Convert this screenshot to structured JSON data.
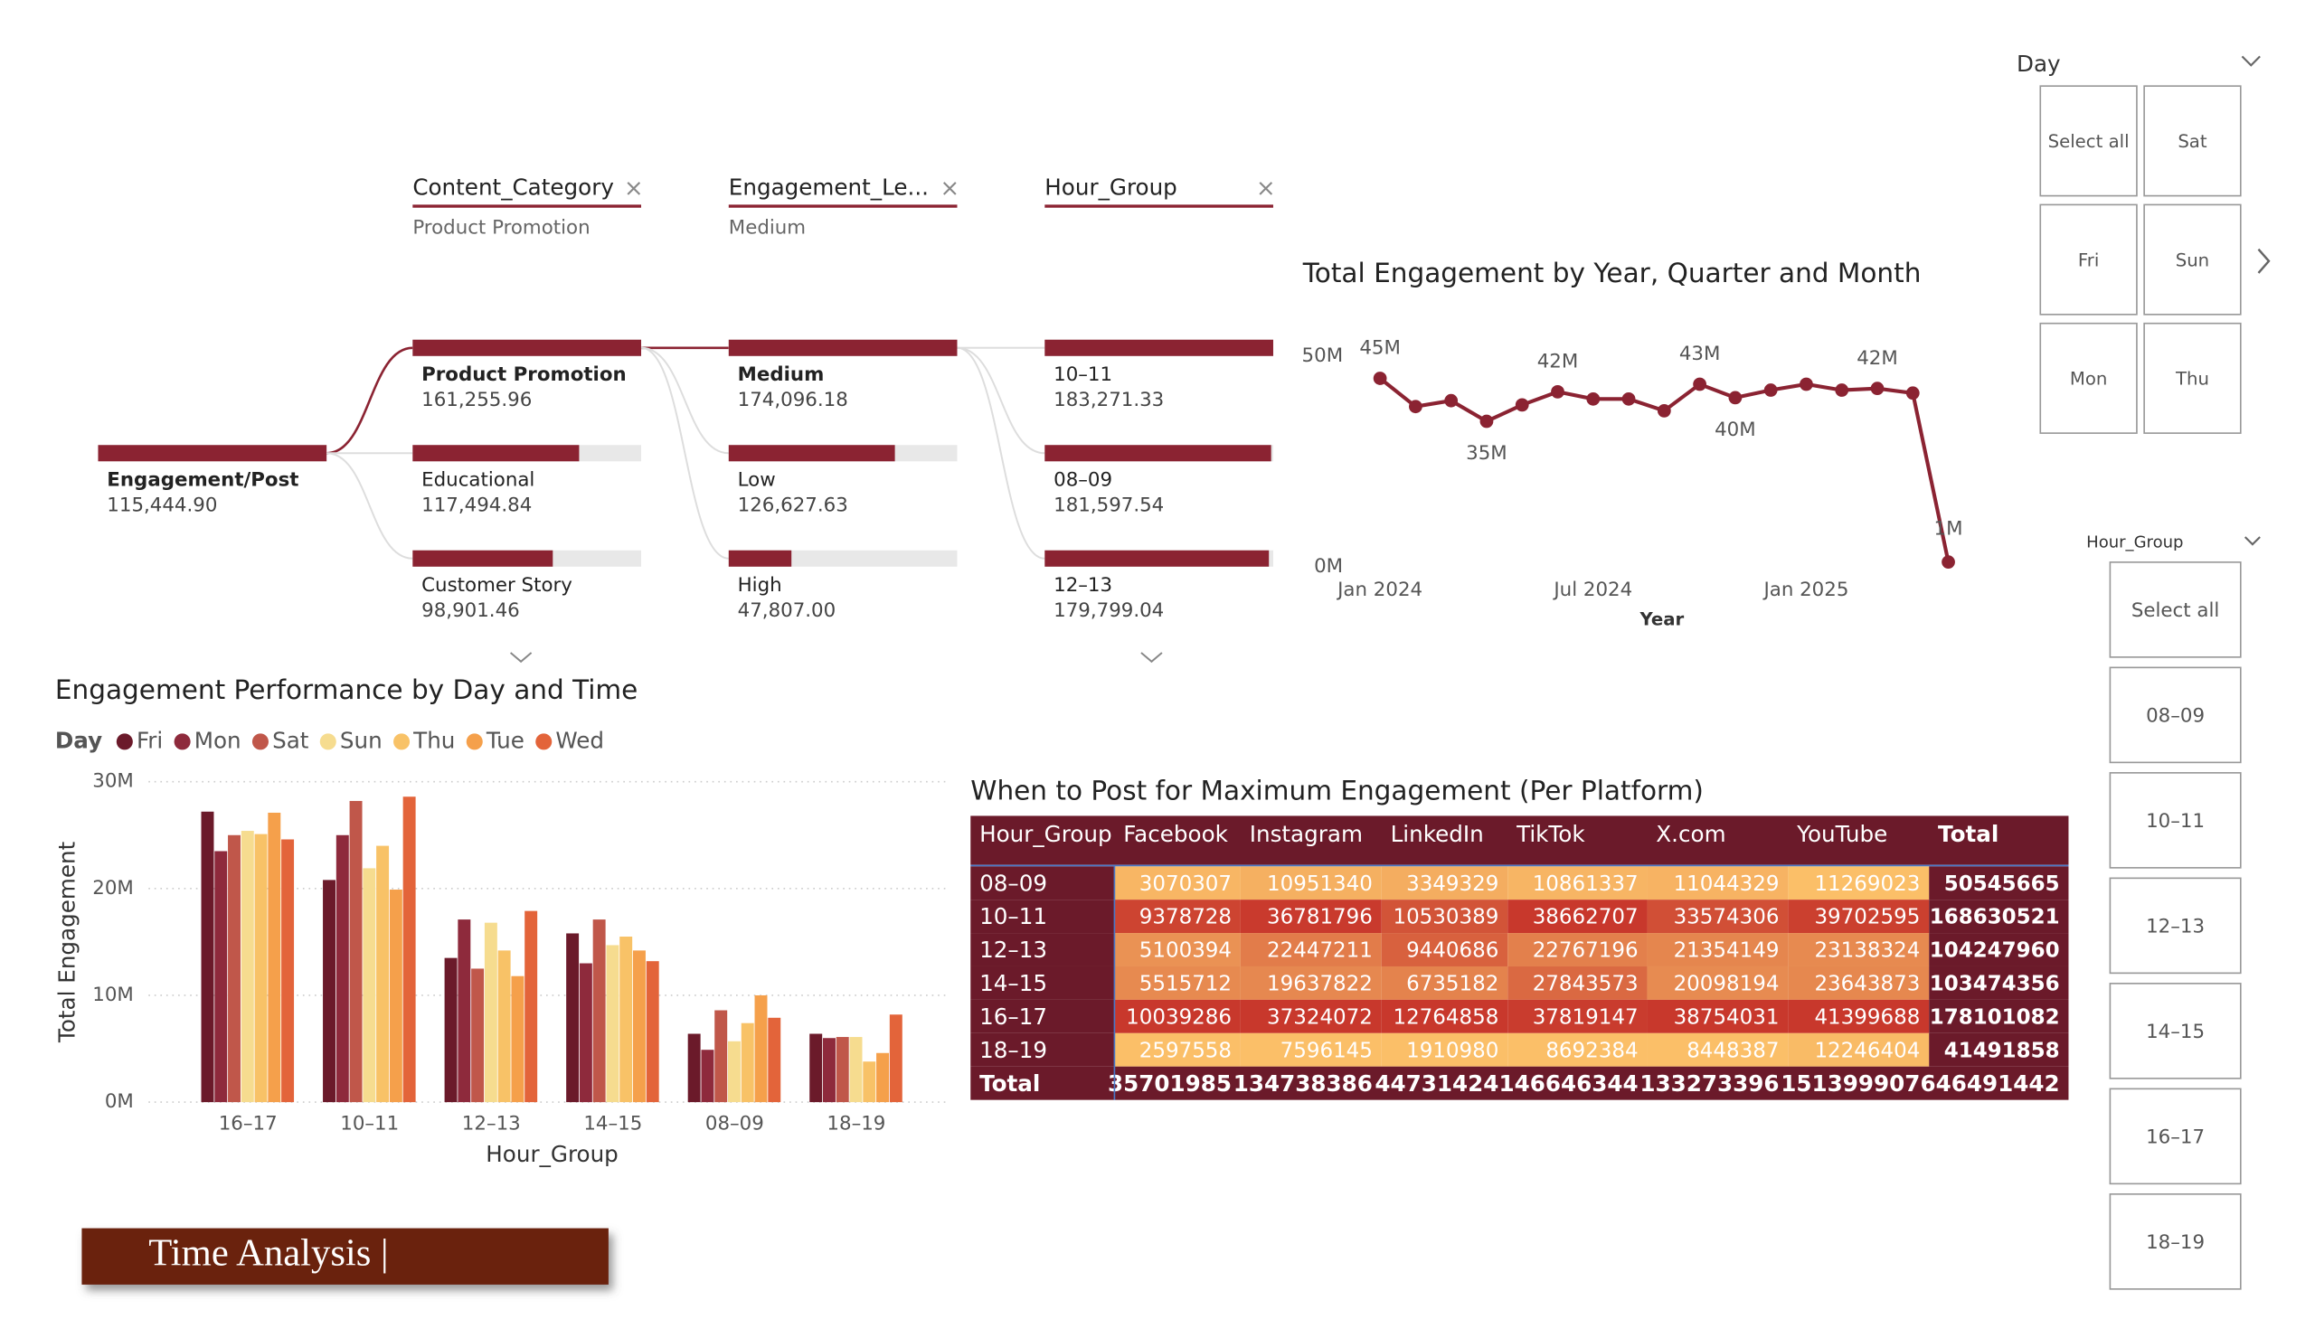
{
  "decomposition_tree": {
    "fields": [
      {
        "name": "Content_Category",
        "selection": "Product Promotion"
      },
      {
        "name": "Engagement_Le...",
        "selection": "Medium"
      },
      {
        "name": "Hour_Group"
      }
    ],
    "root": {
      "label": "Engagement/Post",
      "value": 115444.9,
      "value_label": "115,444.90"
    },
    "levels": [
      [
        {
          "label": "Product Promotion",
          "value": 161255.96,
          "value_label": "161,255.96"
        },
        {
          "label": "Educational",
          "value": 117494.84,
          "value_label": "117,494.84"
        },
        {
          "label": "Customer Story",
          "value": 98901.46,
          "value_label": "98,901.46"
        }
      ],
      [
        {
          "label": "Medium",
          "value": 174096.18,
          "value_label": "174,096.18"
        },
        {
          "label": "Low",
          "value": 126627.63,
          "value_label": "126,627.63"
        },
        {
          "label": "High",
          "value": 47807.0,
          "value_label": "47,807.00"
        }
      ],
      [
        {
          "label": "10–11",
          "value": 183271.33,
          "value_label": "183,271.33"
        },
        {
          "label": "08–09",
          "value": 181597.54,
          "value_label": "181,597.54"
        },
        {
          "label": "12–13",
          "value": 179799.04,
          "value_label": "179,799.04"
        }
      ]
    ]
  },
  "chart_data": [
    {
      "type": "line",
      "title": "Total Engagement by Year, Quarter and Month",
      "x_label": "Year",
      "categories": [
        "Jan 2024",
        null,
        null,
        null,
        null,
        null,
        "Jul 2024",
        null,
        null,
        null,
        null,
        null,
        "Jan 2025",
        null,
        null,
        null,
        null
      ],
      "values": [
        44700000,
        38000000,
        39400000,
        34500000,
        38400000,
        41500000,
        39800000,
        39800000,
        37000000,
        43300000,
        40100000,
        41900000,
        43300000,
        41900000,
        42300000,
        41200000,
        1100000
      ],
      "value_labels": [
        "45M",
        null,
        null,
        "35M",
        null,
        "42M",
        null,
        null,
        null,
        "43M",
        "40M",
        null,
        null,
        null,
        "42M",
        null,
        "1M"
      ],
      "color": "#8b2332",
      "ylim": [
        0,
        50000000
      ],
      "yticks": [
        {
          "value": 0,
          "label": "0M"
        },
        {
          "value": 50000000,
          "label": "50M"
        }
      ]
    },
    {
      "type": "bar",
      "title": "Engagement Performance by Day and Time",
      "legend_title": "Day",
      "x_label": "Hour_Group",
      "y_label": "Total Engagement",
      "categories": [
        "16–17",
        "10–11",
        "12–13",
        "14–15",
        "08–09",
        "18–19"
      ],
      "series": [
        {
          "name": "Fri",
          "color": "#6b1a2a",
          "values": [
            27200000,
            20800000,
            13500000,
            15800000,
            6400000,
            6400000
          ]
        },
        {
          "name": "Mon",
          "color": "#8e2a3c",
          "values": [
            23500000,
            25000000,
            17100000,
            13000000,
            4900000,
            6000000
          ]
        },
        {
          "name": "Sat",
          "color": "#c0574a",
          "values": [
            25000000,
            28200000,
            12500000,
            17100000,
            8600000,
            6100000
          ]
        },
        {
          "name": "Sun",
          "color": "#f6dc8f",
          "values": [
            25400000,
            21900000,
            16800000,
            14700000,
            5700000,
            6100000
          ]
        },
        {
          "name": "Thu",
          "color": "#f8c267",
          "values": [
            25100000,
            24000000,
            14200000,
            15500000,
            7400000,
            3800000
          ]
        },
        {
          "name": "Tue",
          "color": "#f5a04b",
          "values": [
            27100000,
            19900000,
            11800000,
            14200000,
            10000000,
            4600000
          ]
        },
        {
          "name": "Wed",
          "color": "#e3643a",
          "values": [
            24600000,
            28600000,
            17900000,
            13200000,
            7900000,
            8200000
          ]
        }
      ],
      "ylim": [
        0,
        30000000
      ],
      "yticks": [
        {
          "value": 0,
          "label": "0M"
        },
        {
          "value": 10000000,
          "label": "10M"
        },
        {
          "value": 20000000,
          "label": "20M"
        },
        {
          "value": 30000000,
          "label": "30M"
        }
      ],
      "grid": true
    }
  ],
  "table": {
    "title": "When to Post for Maximum Engagement (Per Platform)",
    "header": [
      "Hour_Group",
      "Facebook",
      "Instagram",
      "LinkedIn",
      "TikTok",
      "X.com",
      "YouTube",
      "Total"
    ],
    "rows": [
      [
        "08–09",
        3070307,
        10951340,
        3349329,
        10861337,
        11044329,
        11269023,
        50545665
      ],
      [
        "10–11",
        9378728,
        36781796,
        10530389,
        38662707,
        33574306,
        39702595,
        168630521
      ],
      [
        "12–13",
        5100394,
        22447211,
        9440686,
        22767196,
        21354149,
        23138324,
        104247960
      ],
      [
        "14–15",
        5515712,
        19637822,
        6735182,
        27843573,
        20098194,
        23643873,
        103474356
      ],
      [
        "16–17",
        10039286,
        37324072,
        12764858,
        37819147,
        38754031,
        41399688,
        178101082
      ],
      [
        "18–19",
        2597558,
        7596145,
        1910980,
        8692384,
        8448387,
        12246404,
        41491858
      ]
    ],
    "total": [
      "Total",
      35701985,
      134738386,
      44731424,
      146646344,
      133273396,
      151399907,
      646491442
    ]
  },
  "slicers": [
    {
      "title": "Day",
      "items": [
        "Select all",
        "Sat",
        "Fri",
        "Sun",
        "Mon",
        "Thu"
      ]
    },
    {
      "title": "Hour_Group",
      "items": [
        "Select all",
        "08–09",
        "10–11",
        "12–13",
        "14–15",
        "16–17",
        "18–19"
      ]
    }
  ],
  "button": {
    "label": "Time Analysis |"
  }
}
